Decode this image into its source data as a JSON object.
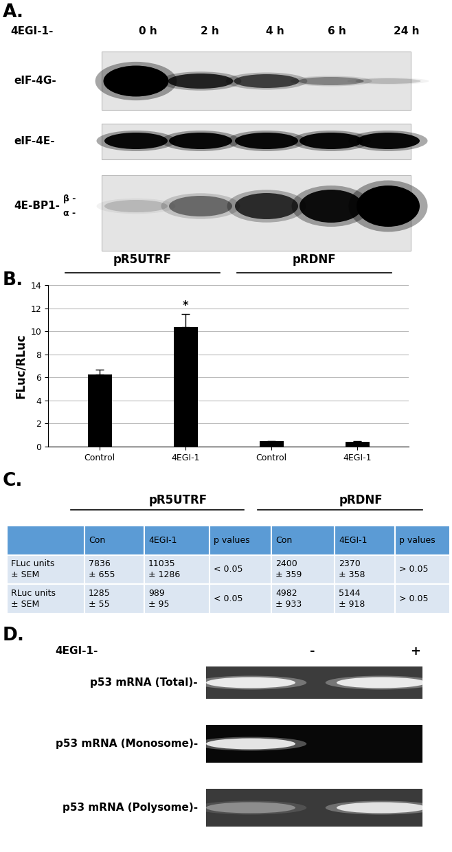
{
  "panel_labels": [
    "A.",
    "B.",
    "C.",
    "D."
  ],
  "blot_A": {
    "treatment": "4EGI-1-",
    "lanes": [
      "0 h",
      "2 h",
      "4 h",
      "6 h",
      "24 h"
    ],
    "rows": [
      {
        "label": "eIF-4G-"
      },
      {
        "label": "eIF-4E-"
      },
      {
        "label": "4E-BP1-",
        "bands": [
          "β -",
          "α -"
        ]
      }
    ]
  },
  "chart_data": {
    "type": "bar",
    "categories": [
      "Control",
      "4EGI-1",
      "Control",
      "4EGI-1"
    ],
    "values": [
      6.25,
      10.35,
      0.45,
      0.4
    ],
    "errors": [
      0.45,
      1.15,
      0.05,
      0.05
    ],
    "color": "#000000",
    "ylabel": "FLuc/RLuc",
    "ylim": [
      0,
      14
    ],
    "yticks": [
      0,
      2,
      4,
      6,
      8,
      10,
      12,
      14
    ],
    "grid": true,
    "groups": [
      {
        "label": "pR5UTRF",
        "size": 2
      },
      {
        "label": "pRDNF",
        "size": 2
      }
    ],
    "annotations": [
      {
        "text": "*",
        "index": 1
      }
    ]
  },
  "table_C": {
    "groups": [
      {
        "label": "pR5UTRF",
        "size": 3
      },
      {
        "label": "pRDNF",
        "size": 3
      }
    ],
    "header": [
      null,
      "Con",
      "4EGI-1",
      "p values",
      "Con",
      "4EGI-1",
      "p values"
    ],
    "rows": [
      [
        "FLuc units\n± SEM",
        "7836\n± 655",
        "11035\n± 1286",
        "< 0.05",
        "2400\n± 359",
        "2370\n± 358",
        "> 0.05"
      ],
      [
        "RLuc units\n± SEM",
        "1285\n± 55",
        "989\n± 95",
        "< 0.05",
        "4982\n± 933",
        "5144\n± 918",
        "> 0.05"
      ]
    ]
  },
  "gel_D": {
    "treatment": "4EGI-1-",
    "lanes": [
      "-",
      "+"
    ],
    "rows": [
      "p53 mRNA (Total)-",
      "p53 mRNA (Monosome)-",
      "p53 mRNA (Polysome)-"
    ]
  }
}
